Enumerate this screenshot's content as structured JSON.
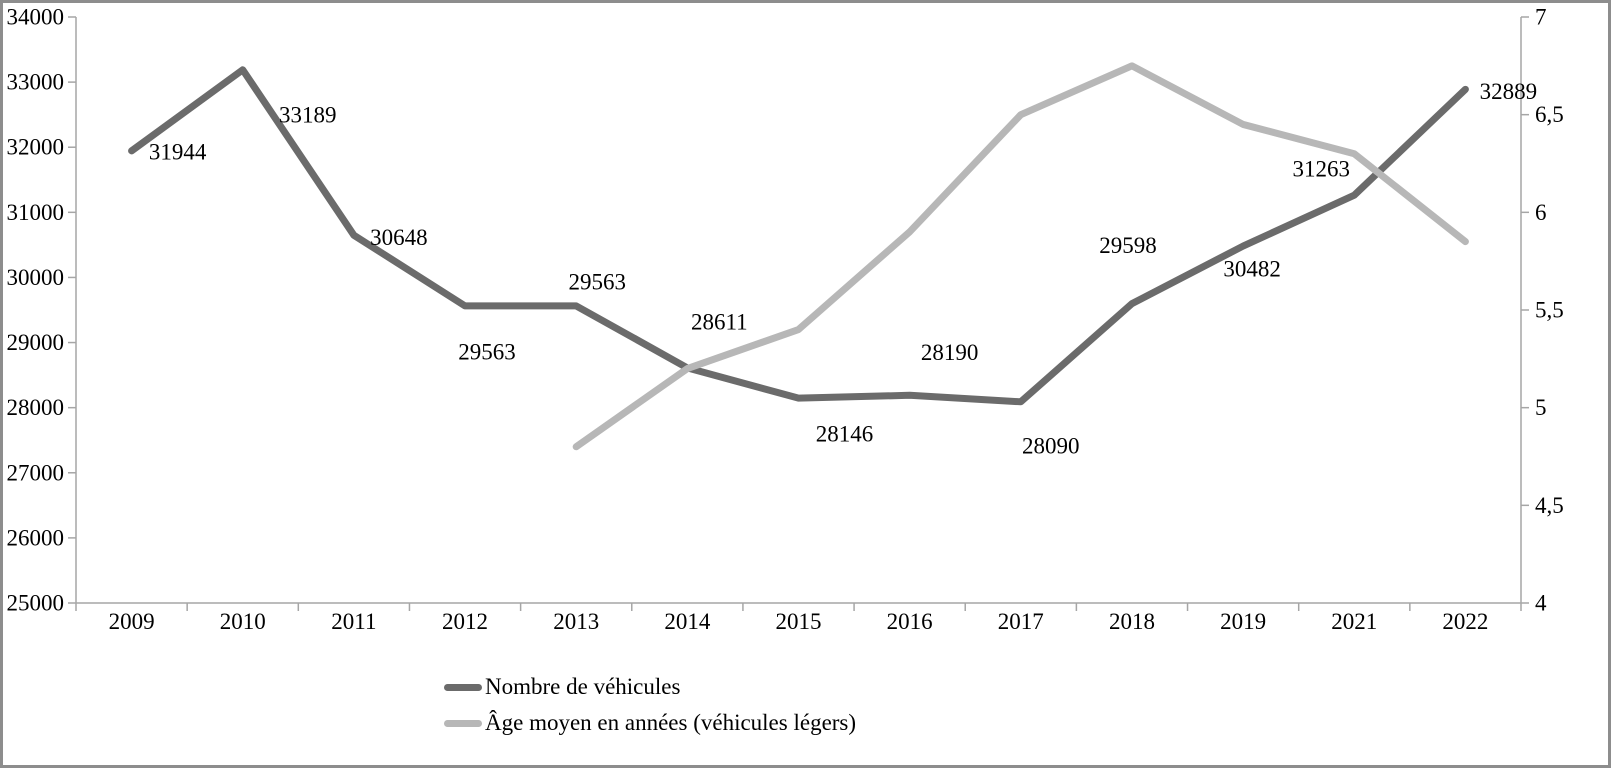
{
  "figure": {
    "background": "#ffffff",
    "frame_color": "#8d8d8d"
  },
  "chart_data": {
    "type": "line",
    "title": "",
    "xlabel": "",
    "ylabel_left": "",
    "ylabel_right": "",
    "grid": false,
    "axis_color": "#a6a6a6",
    "text_color": "#000000",
    "categories": [
      "2009",
      "2010",
      "2011",
      "2012",
      "2013",
      "2014",
      "2015",
      "2016",
      "2017",
      "2018",
      "2019",
      "2021",
      "2022"
    ],
    "series": [
      {
        "name": "Nombre de véhicules",
        "axis": "left",
        "color": "#6b6b6b",
        "values": [
          31944,
          33189,
          30648,
          29563,
          29563,
          28611,
          28146,
          28190,
          28090,
          29598,
          30482,
          31263,
          32889
        ],
        "data_labels": [
          "31944",
          "33189",
          "30648",
          "29563",
          "29563",
          "28611",
          "28146",
          "28190",
          "28090",
          "29598",
          "30482",
          "31263",
          "32889"
        ],
        "label_offsets": [
          [
            46,
            1
          ],
          [
            65,
            45
          ],
          [
            45,
            2
          ],
          [
            22,
            46
          ],
          [
            21,
            -24
          ],
          [
            32,
            -46
          ],
          [
            46,
            36
          ],
          [
            40,
            -43
          ],
          [
            30,
            44
          ],
          [
            -4,
            -58
          ],
          [
            9,
            23
          ],
          [
            -33,
            -26
          ],
          [
            43,
            2
          ]
        ]
      },
      {
        "name": "Âge moyen en années (véhicules légers)",
        "axis": "right",
        "color": "#b7b7b7",
        "values": [
          null,
          null,
          null,
          null,
          4.8,
          5.2,
          5.4,
          5.9,
          6.5,
          6.75,
          6.45,
          6.3,
          5.85
        ],
        "data_labels": null,
        "label_offsets": null
      }
    ],
    "left_axis": {
      "min": 25000,
      "max": 34000,
      "step": 1000,
      "tick_labels": [
        "25000",
        "26000",
        "27000",
        "28000",
        "29000",
        "30000",
        "31000",
        "32000",
        "33000",
        "34000"
      ]
    },
    "right_axis": {
      "min": 4,
      "max": 7,
      "step": 0.5,
      "tick_labels": [
        "4",
        "4,5",
        "5",
        "5,5",
        "6",
        "6,5",
        "7"
      ]
    },
    "legend": {
      "position": "bottom-left",
      "entries": [
        "Nombre de véhicules",
        "Âge moyen en années (véhicules légers)"
      ]
    }
  }
}
